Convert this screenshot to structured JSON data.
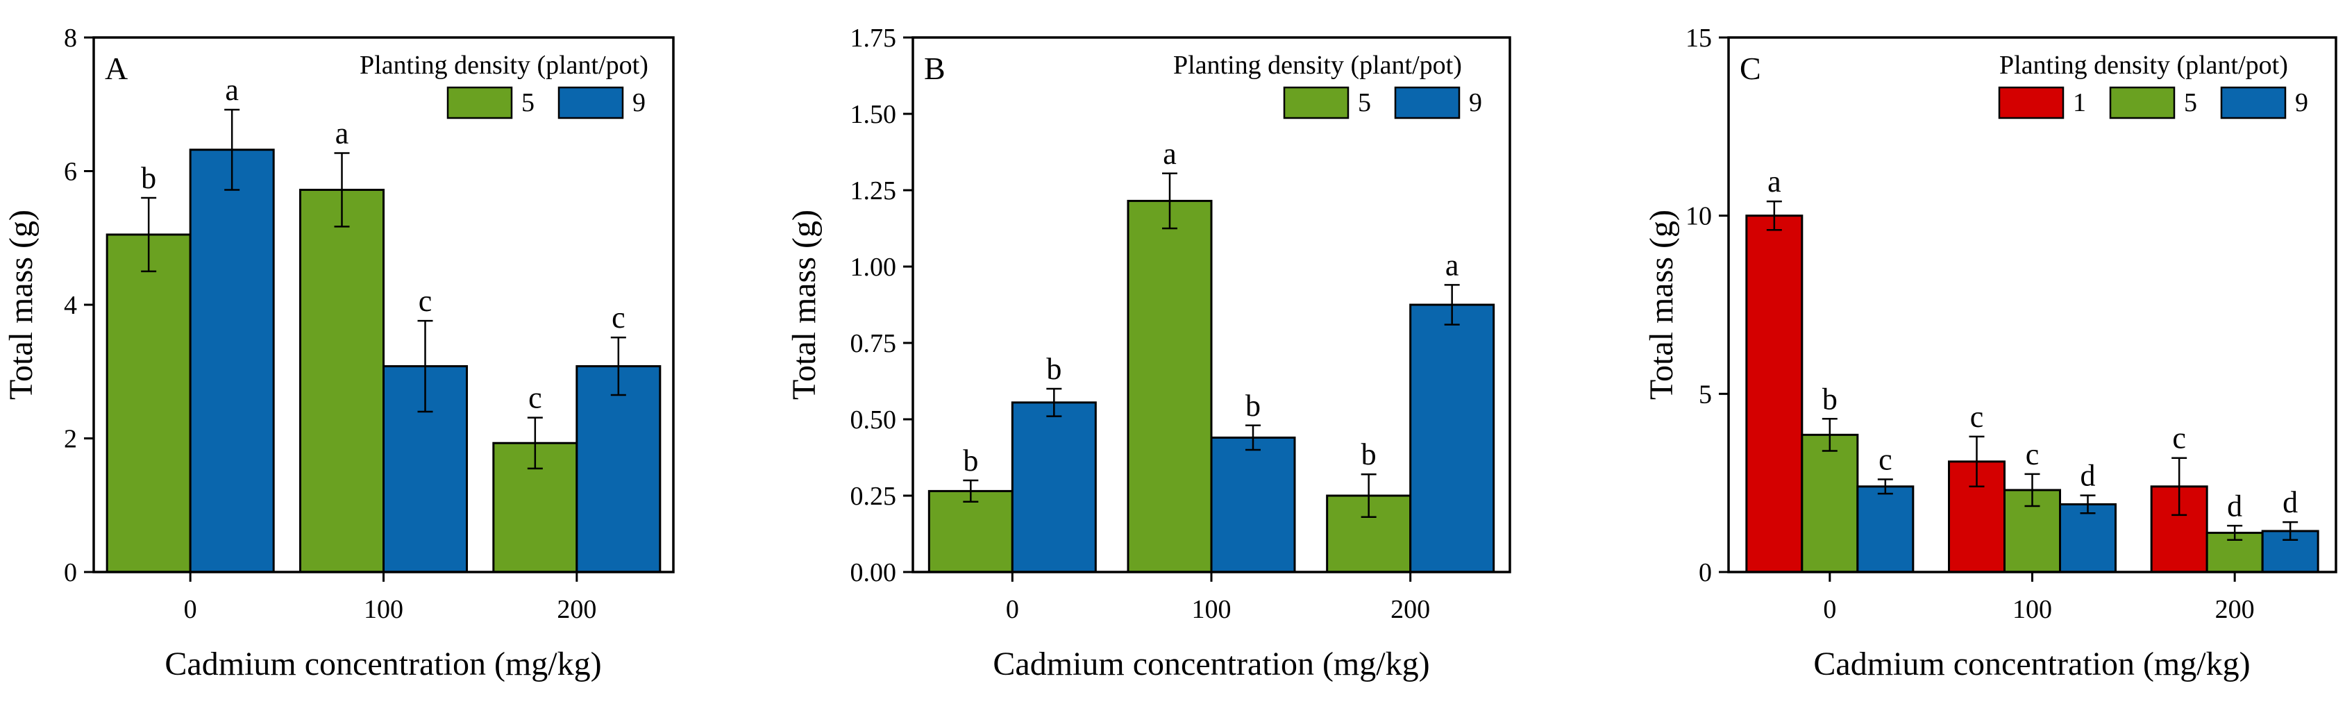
{
  "chart_data": [
    {
      "type": "bar",
      "panel_label": "A",
      "xlabel": "Cadmium concentration (mg/kg)",
      "ylabel": "Total mass (g)",
      "categories": [
        "0",
        "100",
        "200"
      ],
      "ylim": [
        0,
        8
      ],
      "yticks": [
        0,
        2,
        4,
        6,
        8
      ],
      "ytick_labels": [
        "0",
        "2",
        "4",
        "6",
        "8"
      ],
      "legend_title": "Planting density  (plant/pot)",
      "legend_position": "top-right",
      "series": [
        {
          "name": "5",
          "color": "#6aa121",
          "values": [
            5.05,
            5.72,
            1.93
          ],
          "errors": [
            0.55,
            0.55,
            0.38
          ],
          "letters": [
            "b",
            "a",
            "c"
          ]
        },
        {
          "name": "9",
          "color": "#0a66ad",
          "values": [
            6.32,
            3.08,
            3.08
          ],
          "errors": [
            0.6,
            0.68,
            0.43
          ],
          "letters": [
            "a",
            "c",
            "c"
          ]
        }
      ]
    },
    {
      "type": "bar",
      "panel_label": "B",
      "xlabel": "Cadmium concentration (mg/kg)",
      "ylabel": "Total mass (g)",
      "categories": [
        "0",
        "100",
        "200"
      ],
      "ylim": [
        0,
        1.75
      ],
      "yticks": [
        0,
        0.25,
        0.5,
        0.75,
        1.0,
        1.25,
        1.5,
        1.75
      ],
      "ytick_labels": [
        "0.00",
        "0.25",
        "0.50",
        "0.75",
        "1.00",
        "1.25",
        "1.50",
        "1.75"
      ],
      "legend_title": "Planting density  (plant/pot)",
      "legend_position": "top-right",
      "series": [
        {
          "name": "5",
          "color": "#6aa121",
          "values": [
            0.265,
            1.215,
            0.25
          ],
          "errors": [
            0.035,
            0.09,
            0.07
          ],
          "letters": [
            "b",
            "a",
            "b"
          ]
        },
        {
          "name": "9",
          "color": "#0a66ad",
          "values": [
            0.555,
            0.44,
            0.875
          ],
          "errors": [
            0.045,
            0.04,
            0.065
          ],
          "letters": [
            "b",
            "b",
            "a"
          ]
        }
      ]
    },
    {
      "type": "bar",
      "panel_label": "C",
      "xlabel": "Cadmium concentration (mg/kg)",
      "ylabel": "Total mass (g)",
      "categories": [
        "0",
        "100",
        "200"
      ],
      "ylim": [
        0,
        15
      ],
      "yticks": [
        0,
        5,
        10,
        15
      ],
      "ytick_labels": [
        "0",
        "5",
        "10",
        "15"
      ],
      "legend_title": "Planting density  (plant/pot)",
      "legend_position": "top-right",
      "series": [
        {
          "name": "1",
          "color": "#d40000",
          "values": [
            10.0,
            3.1,
            2.4
          ],
          "errors": [
            0.4,
            0.7,
            0.8
          ],
          "letters": [
            "a",
            "c",
            "c"
          ]
        },
        {
          "name": "5",
          "color": "#6aa121",
          "values": [
            3.85,
            2.3,
            1.1
          ],
          "errors": [
            0.45,
            0.45,
            0.2
          ],
          "letters": [
            "b",
            "c",
            "d"
          ]
        },
        {
          "name": "9",
          "color": "#0a66ad",
          "values": [
            2.4,
            1.9,
            1.15
          ],
          "errors": [
            0.2,
            0.25,
            0.25
          ],
          "letters": [
            "c",
            "d",
            "d"
          ]
        }
      ]
    }
  ]
}
